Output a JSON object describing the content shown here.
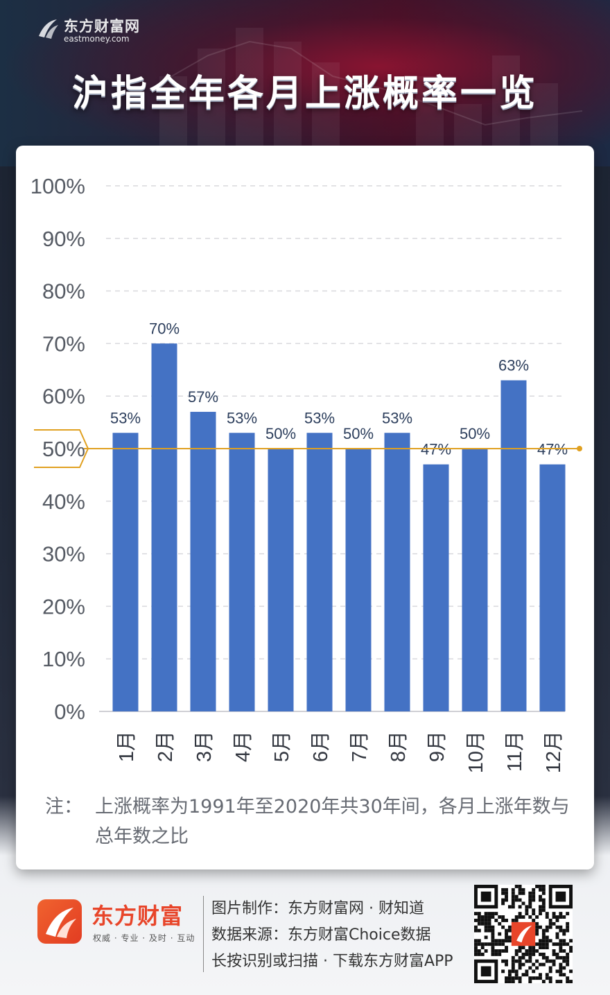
{
  "header": {
    "logo_cn": "东方财富网",
    "logo_en": "eastmoney.com",
    "title": "沪指全年各月上涨概率一览"
  },
  "chart_data": {
    "type": "bar",
    "title": "沪指全年各月上涨概率一览",
    "categories": [
      "1月",
      "2月",
      "3月",
      "4月",
      "5月",
      "6月",
      "7月",
      "8月",
      "9月",
      "10月",
      "11月",
      "12月"
    ],
    "values": [
      53,
      70,
      57,
      53,
      50,
      53,
      50,
      53,
      47,
      50,
      63,
      47
    ],
    "value_labels": [
      "53%",
      "70%",
      "57%",
      "53%",
      "50%",
      "53%",
      "50%",
      "53%",
      "47%",
      "50%",
      "63%",
      "47%"
    ],
    "yticks": [
      "0%",
      "10%",
      "20%",
      "30%",
      "40%",
      "50%",
      "60%",
      "70%",
      "80%",
      "90%",
      "100%"
    ],
    "ylim": [
      0,
      100
    ],
    "reference_line": 50,
    "grid": true,
    "xlabel": "",
    "ylabel": "",
    "colors": {
      "bar": "#4472c4",
      "reference": "#e0a020"
    }
  },
  "note": {
    "label": "注：",
    "text": "上涨概率为1991年至2020年共30年间，各月上涨年数与总年数之比"
  },
  "footer": {
    "brand_name": "东方财富",
    "slogan": "权威 · 专业 · 及时 · 互动",
    "lines": [
      "图片制作：东方财富网 · 财知道",
      "数据来源：东方财富Choice数据",
      "长按识别或扫描 · 下载东方财富APP"
    ]
  }
}
